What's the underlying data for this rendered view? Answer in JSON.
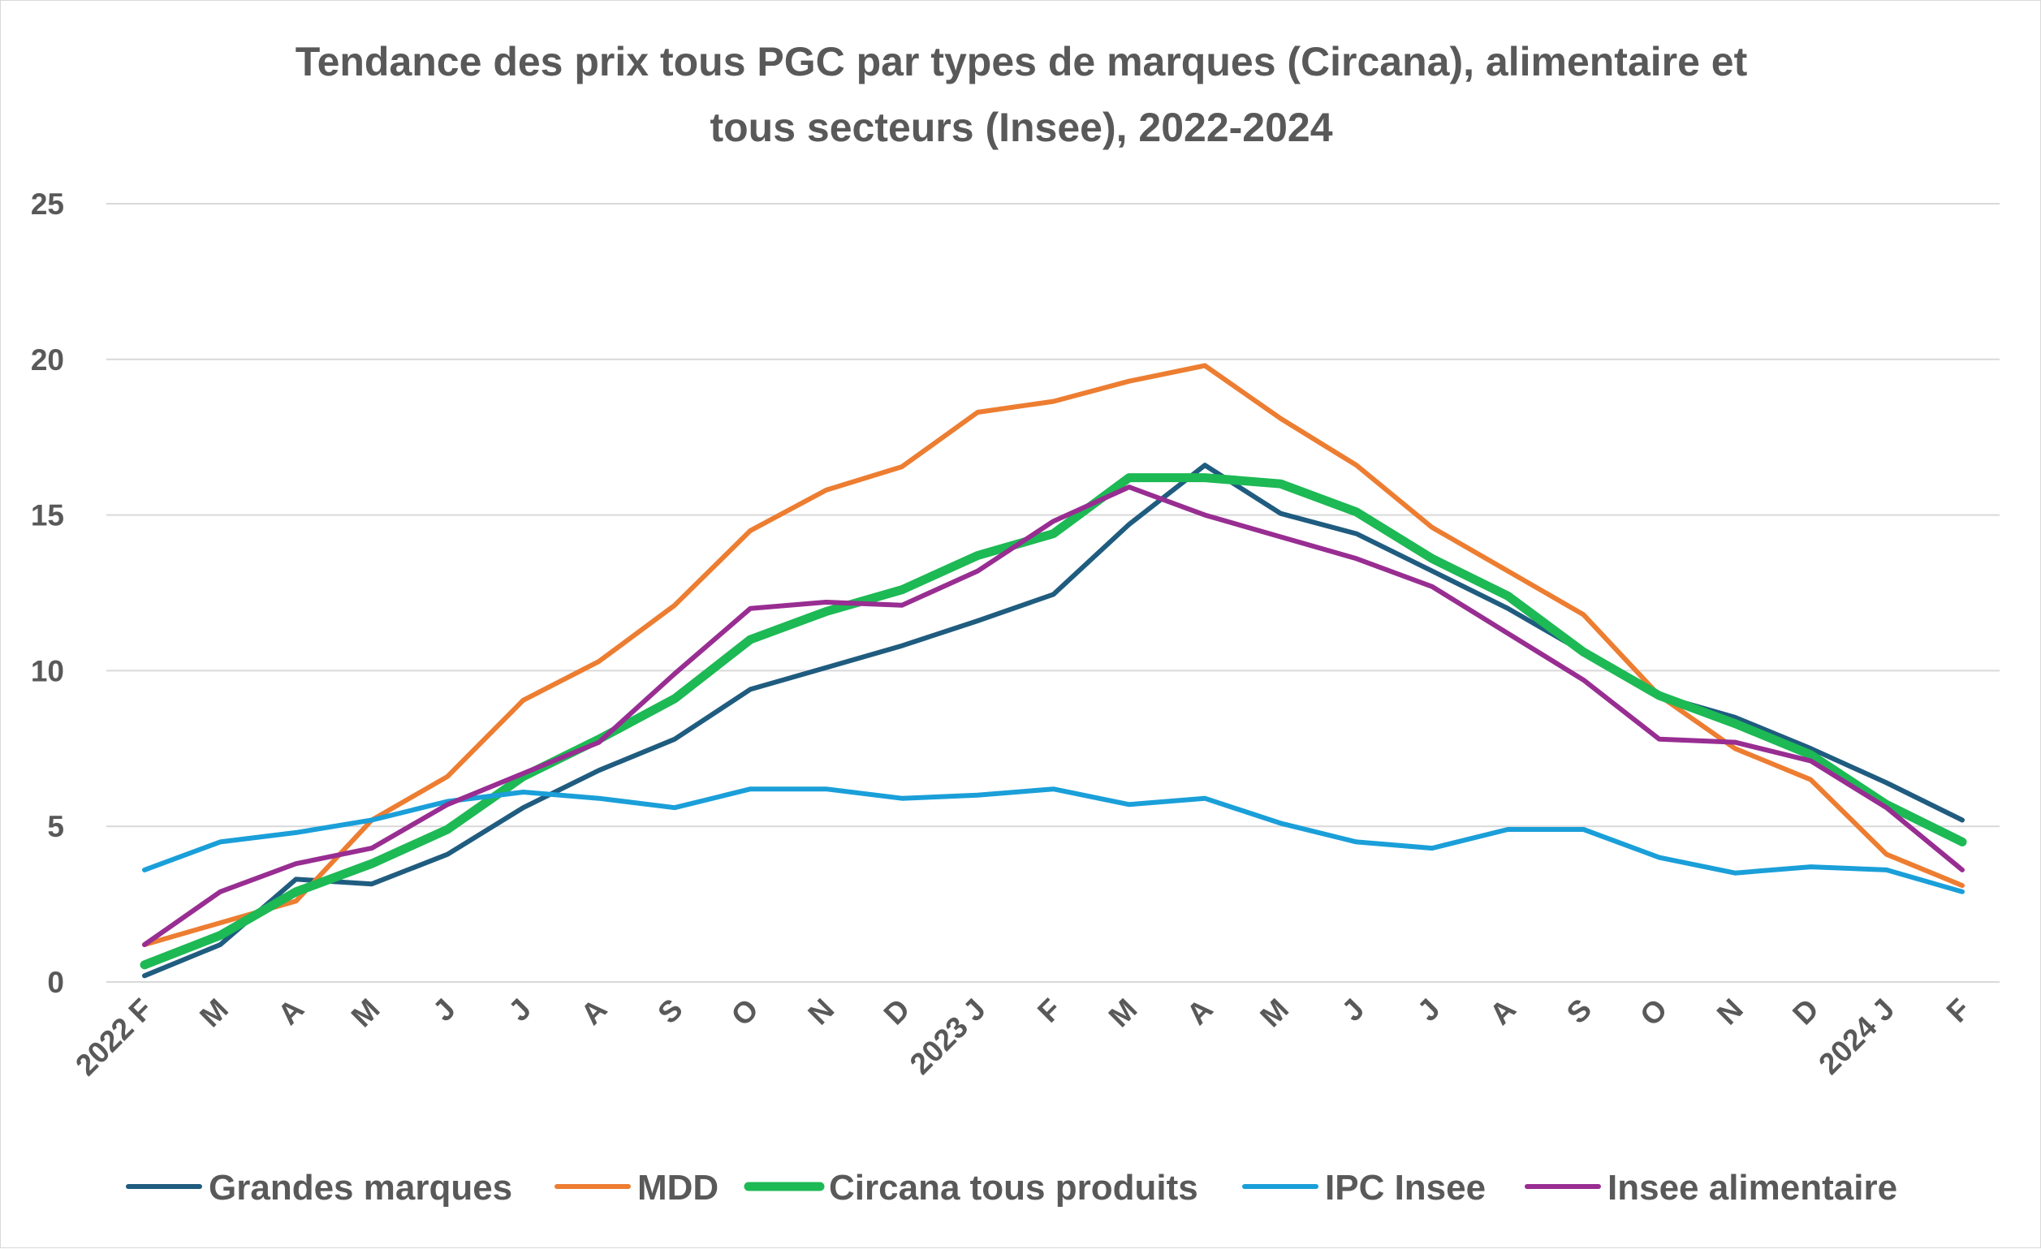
{
  "chart_data": {
    "type": "line",
    "title_lines": [
      "Tendance des prix tous PGC par types de marques (Circana), alimentaire et",
      "tous secteurs (Insee), 2022-2024"
    ],
    "xlabel": "",
    "ylabel": "",
    "ylim": [
      0,
      25
    ],
    "yticks": [
      "0",
      "5",
      "10",
      "15",
      "20",
      "25"
    ],
    "grid": true,
    "legend_position": "bottom",
    "categories": [
      "2022 F",
      "M",
      "A",
      "M",
      "J",
      "J",
      "A",
      "S",
      "O",
      "N",
      "D",
      "2023 J",
      "F",
      "M",
      "A",
      "M",
      "J",
      "J",
      "A",
      "S",
      "O",
      "N",
      "D",
      "2024 J",
      "F"
    ],
    "series": [
      {
        "name": "Grandes marques",
        "color": "#1f5c7f",
        "values": [
          0.2,
          1.2,
          3.3,
          3.15,
          4.1,
          5.6,
          6.8,
          7.8,
          9.4,
          10.1,
          10.8,
          11.6,
          12.45,
          14.7,
          16.6,
          15.05,
          14.4,
          13.2,
          12.0,
          10.6,
          9.2,
          8.5,
          7.5,
          6.4,
          5.2
        ]
      },
      {
        "name": "MDD",
        "color": "#ed7d31",
        "values": [
          1.2,
          1.9,
          2.6,
          5.2,
          6.6,
          9.05,
          10.3,
          12.1,
          14.5,
          15.8,
          16.55,
          18.3,
          18.65,
          19.3,
          19.8,
          18.1,
          16.6,
          14.6,
          13.2,
          11.8,
          9.2,
          7.5,
          6.5,
          4.1,
          3.1
        ]
      },
      {
        "name": "Circana tous produits",
        "color": "#1db954",
        "values": [
          0.55,
          1.5,
          2.9,
          3.8,
          4.9,
          6.6,
          7.8,
          9.1,
          11.0,
          11.9,
          12.6,
          13.7,
          14.4,
          16.2,
          16.2,
          16.0,
          15.1,
          13.6,
          12.4,
          10.6,
          9.2,
          8.3,
          7.3,
          5.7,
          4.5
        ]
      },
      {
        "name": "IPC Insee",
        "color": "#1a9fd9",
        "values": [
          3.6,
          4.5,
          4.8,
          5.2,
          5.8,
          6.1,
          5.9,
          5.6,
          6.2,
          6.2,
          5.9,
          6.0,
          6.2,
          5.7,
          5.9,
          5.1,
          4.5,
          4.3,
          4.9,
          4.9,
          4.0,
          3.5,
          3.7,
          3.6,
          2.9
        ]
      },
      {
        "name": "Insee alimentaire",
        "color": "#982d92",
        "values": [
          1.2,
          2.9,
          3.8,
          4.3,
          5.7,
          6.7,
          7.7,
          9.9,
          12.0,
          12.2,
          12.1,
          13.2,
          14.8,
          15.9,
          15.0,
          14.3,
          13.6,
          12.7,
          11.2,
          9.7,
          7.8,
          7.7,
          7.1,
          5.6,
          3.6
        ]
      }
    ]
  }
}
